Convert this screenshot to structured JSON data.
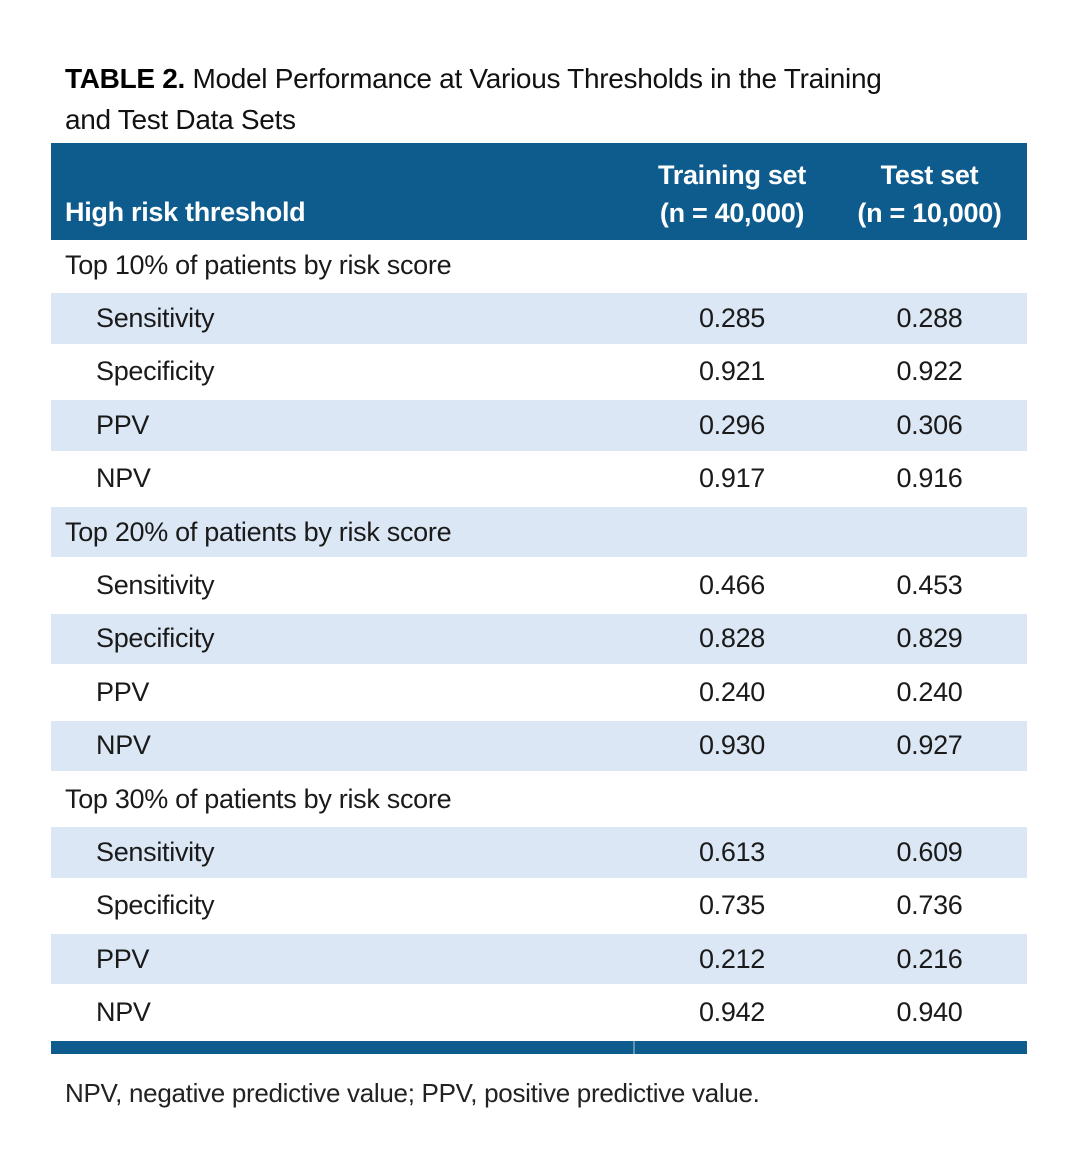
{
  "title": {
    "label": "TABLE 2.",
    "lines": [
      "Model Performance at Various Thresholds in the Training",
      "and Test Data Sets"
    ]
  },
  "colors": {
    "header_bg": "#0e5b8d",
    "row_alt_bg": "#dbe7f4",
    "bottom_bar": "#0e5b8d",
    "bar_divider": "#5f93b5",
    "header_text": "#ffffff",
    "body_text": "#1a1a1a"
  },
  "table": {
    "columns": {
      "label": "High risk threshold",
      "training": {
        "line1": "Training set",
        "line2": "(n = 40,000)"
      },
      "test": {
        "line1": "Test set",
        "line2": "(n = 10,000)"
      }
    },
    "sections": [
      {
        "heading": "Top 10% of patients by risk score",
        "rows": [
          {
            "metric": "Sensitivity",
            "training": "0.285",
            "test": "0.288"
          },
          {
            "metric": "Specificity",
            "training": "0.921",
            "test": "0.922"
          },
          {
            "metric": "PPV",
            "training": "0.296",
            "test": "0.306"
          },
          {
            "metric": "NPV",
            "training": "0.917",
            "test": "0.916"
          }
        ]
      },
      {
        "heading": "Top 20% of patients by risk score",
        "rows": [
          {
            "metric": "Sensitivity",
            "training": "0.466",
            "test": "0.453"
          },
          {
            "metric": "Specificity",
            "training": "0.828",
            "test": "0.829"
          },
          {
            "metric": "PPV",
            "training": "0.240",
            "test": "0.240"
          },
          {
            "metric": "NPV",
            "training": "0.930",
            "test": "0.927"
          }
        ]
      },
      {
        "heading": "Top 30% of patients by risk score",
        "rows": [
          {
            "metric": "Sensitivity",
            "training": "0.613",
            "test": "0.609"
          },
          {
            "metric": "Specificity",
            "training": "0.735",
            "test": "0.736"
          },
          {
            "metric": "PPV",
            "training": "0.212",
            "test": "0.216"
          },
          {
            "metric": "NPV",
            "training": "0.942",
            "test": "0.940"
          }
        ]
      }
    ]
  },
  "footnote": "NPV, negative predictive value; PPV, positive predictive value."
}
